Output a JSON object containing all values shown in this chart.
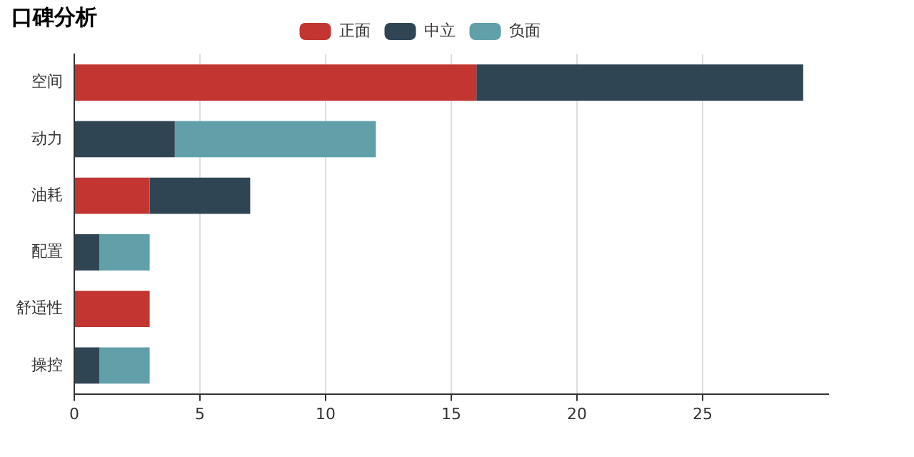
{
  "chart_data": {
    "type": "bar",
    "title": "口碑分析",
    "orientation": "horizontal",
    "stacked": true,
    "categories": [
      "空间",
      "动力",
      "油耗",
      "配置",
      "舒适性",
      "操控"
    ],
    "series": [
      {
        "name": "正面",
        "color": "#c23531",
        "values": [
          16,
          0,
          3,
          0,
          3,
          0
        ]
      },
      {
        "name": "中立",
        "color": "#2f4554",
        "values": [
          13,
          4,
          4,
          1,
          0,
          1
        ]
      },
      {
        "name": "负面",
        "color": "#61a0a8",
        "values": [
          0,
          8,
          0,
          2,
          0,
          2
        ]
      }
    ],
    "xlim": [
      0,
      30
    ],
    "xticks": [
      0,
      5,
      10,
      15,
      20,
      25
    ],
    "grid": "x",
    "legend": "top"
  }
}
